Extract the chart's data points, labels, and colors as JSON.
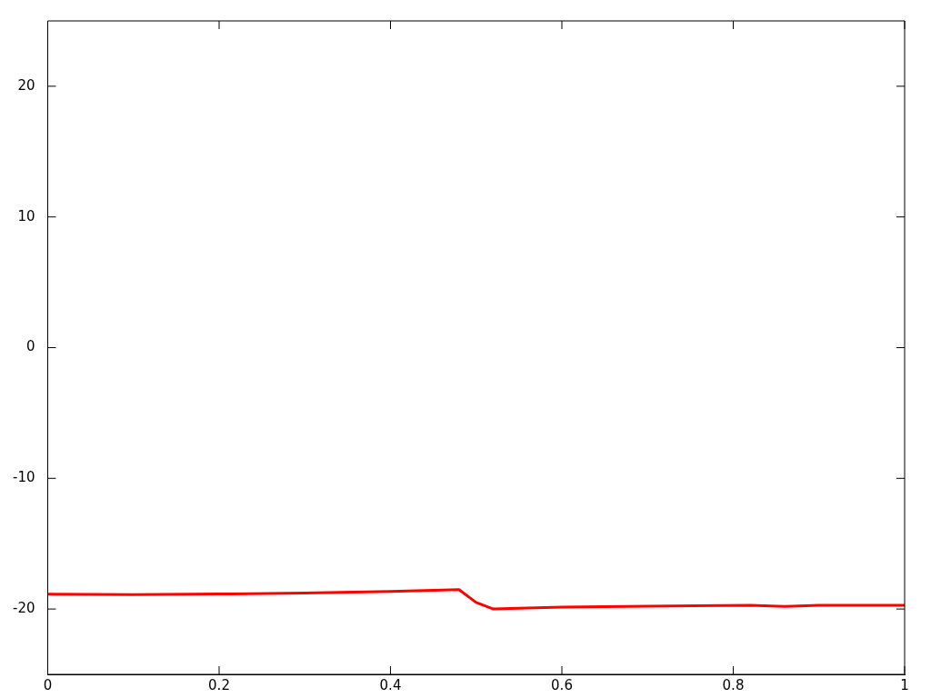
{
  "chart_data": {
    "type": "line",
    "xlim": [
      0,
      1
    ],
    "ylim": [
      -25,
      25
    ],
    "xticks": [
      0,
      0.2,
      0.4,
      0.6,
      0.8,
      1
    ],
    "yticks": [
      -20,
      -10,
      0,
      10,
      20
    ],
    "grid": false,
    "legend": false,
    "marker": "none",
    "series": [
      {
        "color": "#ff0000",
        "x": [
          0,
          0.1,
          0.2,
          0.3,
          0.4,
          0.48,
          0.5,
          0.52,
          0.6,
          0.7,
          0.82,
          0.86,
          0.9,
          1
        ],
        "values": [
          -18.87,
          -18.9,
          -18.85,
          -18.78,
          -18.66,
          -18.52,
          -19.5,
          -20.0,
          -19.86,
          -19.78,
          -19.72,
          -19.8,
          -19.72,
          -19.72
        ]
      }
    ]
  }
}
